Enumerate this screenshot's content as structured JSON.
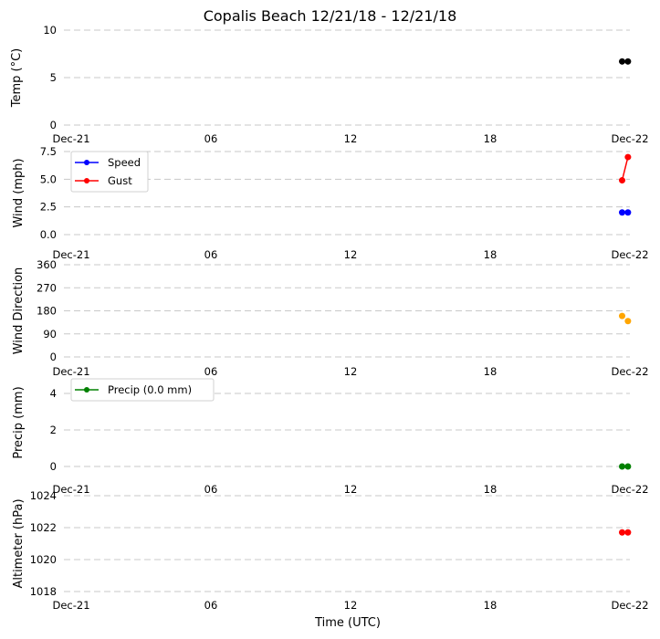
{
  "title": "Copalis Beach 12/21/18 - 12/21/18",
  "xlabel": "Time (UTC)",
  "x_ticks": [
    "Dec-21",
    "06",
    "12",
    "18",
    "Dec-22"
  ],
  "chart_data": [
    {
      "type": "scatter",
      "panel": "temperature",
      "ylabel": "Temp ($^\\circ$C)",
      "ylabel_display": "Temp (°C)",
      "ylim": [
        0,
        10
      ],
      "yticks": [
        "0",
        "5",
        "10"
      ],
      "x_ticks": [
        "Dec-21",
        "06",
        "12",
        "18",
        "Dec-22"
      ],
      "series": [
        {
          "color": "#000000",
          "x": [
            "2018-12-21 23:40",
            "2018-12-21 23:55"
          ],
          "y": [
            6.7,
            6.7
          ]
        }
      ]
    },
    {
      "type": "line",
      "panel": "wind",
      "ylabel": "Wind (mph)",
      "ylim": [
        0,
        7.5
      ],
      "yticks": [
        "0.0",
        "2.5",
        "5.0",
        "7.5"
      ],
      "x_ticks": [
        "Dec-21",
        "06",
        "12",
        "18",
        "Dec-22"
      ],
      "legend": "top-left",
      "series": [
        {
          "name": "Speed",
          "color": "#0000ff",
          "x": [
            "2018-12-21 23:40",
            "2018-12-21 23:55"
          ],
          "y": [
            2.0,
            2.0
          ]
        },
        {
          "name": "Gust",
          "color": "#ff0000",
          "x": [
            "2018-12-21 23:40",
            "2018-12-21 23:55"
          ],
          "y": [
            4.9,
            7.0
          ]
        }
      ]
    },
    {
      "type": "scatter",
      "panel": "wind_direction",
      "ylabel": "Wind Direction",
      "ylim": [
        0,
        360
      ],
      "yticks": [
        "0",
        "90",
        "180",
        "270",
        "360"
      ],
      "x_ticks": [
        "Dec-21",
        "06",
        "12",
        "18",
        "Dec-22"
      ],
      "series": [
        {
          "color": "#ffa500",
          "x": [
            "2018-12-21 23:40",
            "2018-12-21 23:55"
          ],
          "y": [
            160,
            140
          ]
        }
      ]
    },
    {
      "type": "line",
      "panel": "precip",
      "ylabel": "Precip (mm)",
      "ylim": [
        0,
        4.8
      ],
      "yticks": [
        "0",
        "2",
        "4"
      ],
      "x_ticks": [
        "Dec-21",
        "06",
        "12",
        "18",
        "Dec-22"
      ],
      "legend": "top-left",
      "series": [
        {
          "name": "Precip (0.0 mm)",
          "color": "#008000",
          "x": [
            "2018-12-21 23:40",
            "2018-12-21 23:55"
          ],
          "y": [
            0.0,
            0.0
          ]
        }
      ]
    },
    {
      "type": "scatter",
      "panel": "altimeter",
      "ylabel": "Altimeter (hPa)",
      "ylim": [
        1018,
        1024
      ],
      "yticks": [
        "1018",
        "1020",
        "1022",
        "1024"
      ],
      "x_ticks": [
        "Dec-21",
        "06",
        "12",
        "18",
        "Dec-22"
      ],
      "series": [
        {
          "color": "#ff0000",
          "x": [
            "2018-12-21 23:40",
            "2018-12-21 23:55"
          ],
          "y": [
            1021.7,
            1021.7
          ]
        }
      ]
    }
  ]
}
